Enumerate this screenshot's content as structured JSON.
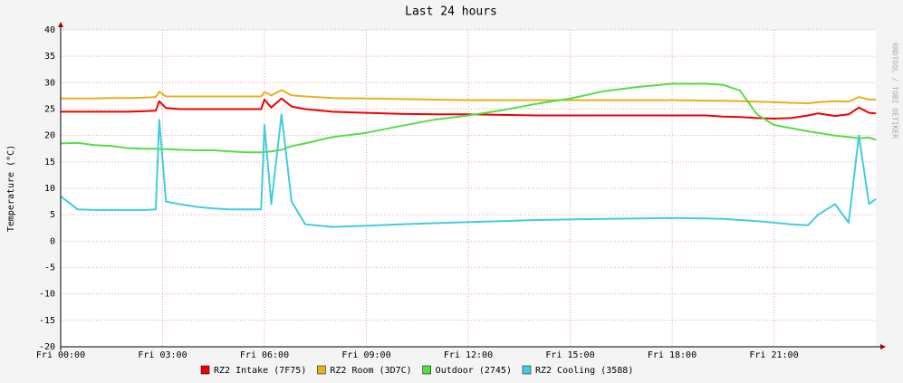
{
  "chart_data": {
    "type": "line",
    "title": "Last 24 hours",
    "y_label": "Temperature (°C)",
    "watermark": "RRDTOOL / TOBI OETIKER",
    "grid": true,
    "x": [
      0,
      0.5,
      1,
      1.5,
      2,
      2.5,
      2.8,
      2.9,
      3.1,
      3.5,
      4,
      4.5,
      5,
      5.5,
      5.9,
      6.0,
      6.2,
      6.5,
      6.8,
      7.2,
      8,
      9,
      10,
      11,
      12,
      13,
      14,
      15,
      16,
      17,
      18,
      19,
      19.5,
      20,
      20.5,
      21,
      21.5,
      22,
      22.3,
      22.8,
      23.2,
      23.5,
      23.8,
      24
    ],
    "xlim": [
      0,
      24
    ],
    "xticks": [
      {
        "value": 0,
        "label": "Fri 00:00"
      },
      {
        "value": 3,
        "label": "Fri 03:00"
      },
      {
        "value": 6,
        "label": "Fri 06:00"
      },
      {
        "value": 9,
        "label": "Fri 09:00"
      },
      {
        "value": 12,
        "label": "Fri 12:00"
      },
      {
        "value": 15,
        "label": "Fri 15:00"
      },
      {
        "value": 18,
        "label": "Fri 18:00"
      },
      {
        "value": 21,
        "label": "Fri 21:00"
      }
    ],
    "ylim": [
      -20,
      40
    ],
    "yticks": [
      -20,
      -15,
      -10,
      -5,
      0,
      5,
      10,
      15,
      20,
      25,
      30,
      35,
      40
    ],
    "series": [
      {
        "name": "RZ2 Intake (7F75)",
        "color": "#ee0000",
        "values": [
          24.5,
          24.5,
          24.5,
          24.5,
          24.5,
          24.6,
          24.7,
          26.5,
          25.2,
          25,
          25,
          25,
          25,
          25,
          25,
          26.8,
          25.3,
          27,
          25.5,
          25,
          24.5,
          24.3,
          24.1,
          24,
          24,
          23.9,
          23.8,
          23.8,
          23.8,
          23.8,
          23.8,
          23.8,
          23.6,
          23.5,
          23.3,
          23.2,
          23.3,
          23.8,
          24.2,
          23.7,
          24,
          25.3,
          24.3,
          24.2
        ]
      },
      {
        "name": "RZ2 Room (3D7C)",
        "color": "#e8b020",
        "values": [
          27,
          27,
          27,
          27.1,
          27.1,
          27.2,
          27.3,
          28.3,
          27.4,
          27.4,
          27.4,
          27.4,
          27.4,
          27.4,
          27.4,
          28.2,
          27.6,
          28.6,
          27.6,
          27.4,
          27.1,
          27,
          26.9,
          26.8,
          26.7,
          26.7,
          26.7,
          26.7,
          26.7,
          26.7,
          26.7,
          26.6,
          26.6,
          26.5,
          26.4,
          26.3,
          26.2,
          26.1,
          26.3,
          26.5,
          26.4,
          27.3,
          26.8,
          26.8
        ]
      },
      {
        "name": "Outdoor (2745)",
        "color": "#55dd44",
        "values": [
          18.5,
          18.6,
          18.2,
          18,
          17.6,
          17.5,
          17.5,
          17.4,
          17.4,
          17.3,
          17.2,
          17.2,
          17,
          16.8,
          16.8,
          16.9,
          17,
          17.3,
          18,
          18.5,
          19.7,
          20.5,
          21.8,
          23,
          23.8,
          24.8,
          26,
          27,
          28.4,
          29.2,
          29.8,
          29.8,
          29.6,
          28.5,
          24,
          22,
          21.4,
          20.8,
          20.5,
          20,
          19.7,
          19.5,
          19.6,
          19.2
        ]
      },
      {
        "name": "RZ2 Cooling (3588)",
        "color": "#44ccdd",
        "values": [
          8.5,
          6,
          5.9,
          5.9,
          5.9,
          5.9,
          6,
          23,
          7.5,
          7,
          6.5,
          6.2,
          6,
          6,
          6,
          22,
          7,
          24,
          7.5,
          3.2,
          2.7,
          2.9,
          3.2,
          3.4,
          3.6,
          3.8,
          4,
          4.1,
          4.2,
          4.3,
          4.4,
          4.3,
          4.2,
          4,
          3.8,
          3.5,
          3.2,
          3,
          5,
          7,
          3.5,
          20,
          7,
          8
        ]
      }
    ]
  }
}
